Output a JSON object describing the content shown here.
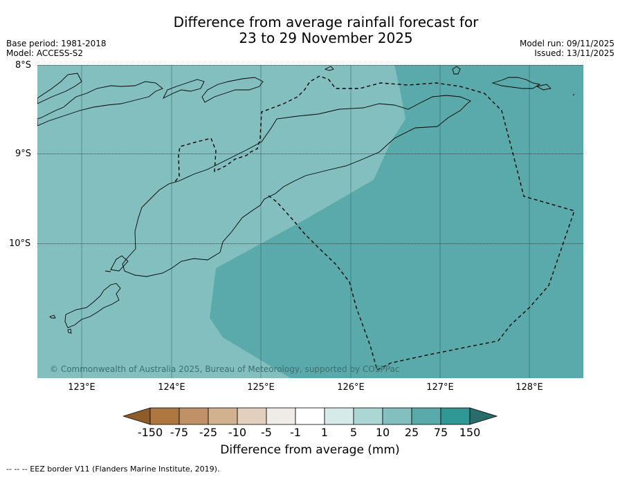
{
  "header": {
    "title_line1": "Difference from average rainfall forecast for",
    "title_line2": "23 to 29 November 2025",
    "base_period": "Base period: 1981-2018",
    "model": "Model: ACCESS-S2",
    "model_run": "Model run: 09/11/2025",
    "issued": "Issued: 13/11/2025"
  },
  "map": {
    "latitude_labels": [
      "8°S",
      "9°S",
      "10°S"
    ],
    "longitude_labels": [
      "123°E",
      "124°E",
      "125°E",
      "126°E",
      "127°E",
      "128°E"
    ],
    "credit": "© Commonwealth of Australia 2025, Bureau of Meteorology, supported by COSPPac",
    "colors": {
      "band_10_25": "#82bfbe",
      "band_25_75": "#5aaaab",
      "band_5_10": "#abd6d4",
      "coast": "#000000"
    }
  },
  "colorbar": {
    "title": "Difference from average (mm)",
    "labels": [
      "-150",
      "-75",
      "-25",
      "-10",
      "-5",
      "-1",
      "1",
      "5",
      "10",
      "25",
      "75",
      "150"
    ],
    "colors": [
      "#8e5b2b",
      "#ae7740",
      "#c09066",
      "#d2b18f",
      "#e3cfbd",
      "#efece8",
      "#ffffff",
      "#d6ebe9",
      "#abd6d4",
      "#82bfbe",
      "#5aaaab",
      "#2f9894",
      "#2a6c6a"
    ]
  },
  "footer": {
    "legend": "--  --  -- EEZ border V11 (Flanders Marine Institute, 2019)."
  }
}
